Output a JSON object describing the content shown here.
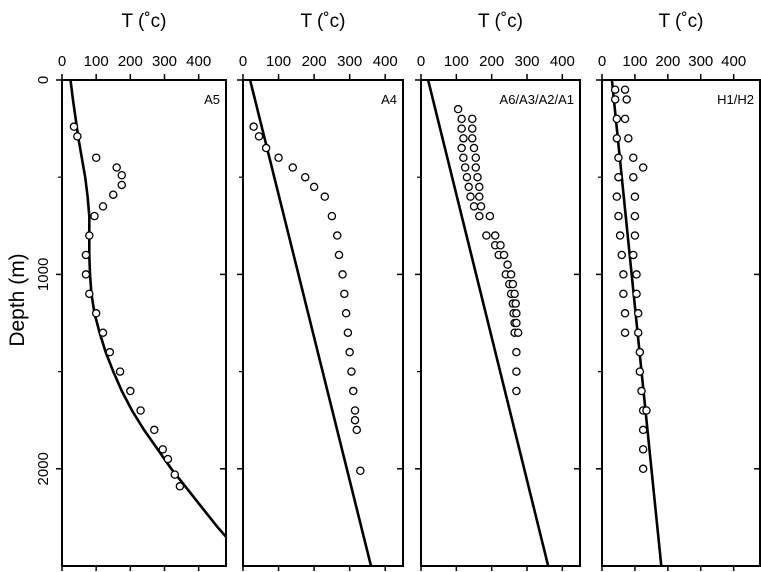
{
  "chart_data": {
    "type": "scatter",
    "shared_ylabel": "Depth (m)",
    "ylim": [
      0,
      2500
    ],
    "y_tick_labels": [
      {
        "v": 0,
        "t": "0"
      },
      {
        "v": 1000,
        "t": "1000"
      },
      {
        "v": 2000,
        "t": "2000"
      }
    ],
    "y_reversed": true,
    "panels": [
      {
        "title": "T (˚c)",
        "label": "A5",
        "xlim": [
          0,
          480
        ],
        "x_ticks": [
          0,
          100,
          200,
          300,
          400
        ],
        "x_tick_labels": [
          "0",
          "100",
          "200",
          "300",
          "400"
        ],
        "curve": [
          [
            25,
            0
          ],
          [
            32,
            100
          ],
          [
            40,
            200
          ],
          [
            48,
            300
          ],
          [
            58,
            400
          ],
          [
            68,
            500
          ],
          [
            75,
            600
          ],
          [
            80,
            700
          ],
          [
            80,
            800
          ],
          [
            80,
            900
          ],
          [
            82,
            1000
          ],
          [
            86,
            1100
          ],
          [
            95,
            1200
          ],
          [
            110,
            1300
          ],
          [
            128,
            1400
          ],
          [
            150,
            1500
          ],
          [
            175,
            1600
          ],
          [
            205,
            1700
          ],
          [
            240,
            1800
          ],
          [
            280,
            1900
          ],
          [
            320,
            2000
          ],
          [
            365,
            2100
          ],
          [
            410,
            2200
          ],
          [
            455,
            2300
          ],
          [
            480,
            2350
          ]
        ],
        "points": [
          [
            35,
            240
          ],
          [
            45,
            290
          ],
          [
            100,
            400
          ],
          [
            160,
            450
          ],
          [
            175,
            490
          ],
          [
            175,
            540
          ],
          [
            150,
            590
          ],
          [
            120,
            650
          ],
          [
            95,
            700
          ],
          [
            80,
            800
          ],
          [
            70,
            900
          ],
          [
            70,
            1000
          ],
          [
            80,
            1100
          ],
          [
            100,
            1200
          ],
          [
            120,
            1300
          ],
          [
            140,
            1400
          ],
          [
            170,
            1500
          ],
          [
            200,
            1600
          ],
          [
            230,
            1700
          ],
          [
            270,
            1800
          ],
          [
            295,
            1900
          ],
          [
            310,
            1950
          ],
          [
            330,
            2030
          ],
          [
            345,
            2090
          ]
        ]
      },
      {
        "title": "T (˚c)",
        "label": "A4",
        "xlim": [
          0,
          450
        ],
        "x_ticks": [
          0,
          100,
          200,
          300,
          400
        ],
        "x_tick_labels": [
          "0",
          "100",
          "200",
          "300",
          "400"
        ],
        "curve": [
          [
            20,
            0
          ],
          [
            360,
            2500
          ]
        ],
        "points": [
          [
            30,
            240
          ],
          [
            45,
            290
          ],
          [
            65,
            350
          ],
          [
            100,
            400
          ],
          [
            140,
            450
          ],
          [
            175,
            500
          ],
          [
            200,
            550
          ],
          [
            230,
            600
          ],
          [
            250,
            700
          ],
          [
            265,
            800
          ],
          [
            270,
            900
          ],
          [
            280,
            1000
          ],
          [
            285,
            1100
          ],
          [
            290,
            1200
          ],
          [
            295,
            1300
          ],
          [
            300,
            1400
          ],
          [
            305,
            1500
          ],
          [
            310,
            1600
          ],
          [
            315,
            1700
          ],
          [
            315,
            1750
          ],
          [
            320,
            1800
          ],
          [
            330,
            2010
          ]
        ]
      },
      {
        "title": "T (˚c)",
        "label": "A6/A3/A2/A1",
        "xlim": [
          0,
          450
        ],
        "x_ticks": [
          0,
          100,
          200,
          300,
          400
        ],
        "x_tick_labels": [
          "0",
          "100",
          "200",
          "300",
          "400"
        ],
        "curve": [
          [
            20,
            0
          ],
          [
            360,
            2500
          ]
        ],
        "points": [
          [
            105,
            150
          ],
          [
            115,
            200
          ],
          [
            145,
            200
          ],
          [
            115,
            250
          ],
          [
            145,
            250
          ],
          [
            120,
            300
          ],
          [
            145,
            300
          ],
          [
            115,
            350
          ],
          [
            150,
            350
          ],
          [
            120,
            400
          ],
          [
            155,
            400
          ],
          [
            125,
            450
          ],
          [
            155,
            450
          ],
          [
            130,
            500
          ],
          [
            160,
            500
          ],
          [
            135,
            550
          ],
          [
            165,
            550
          ],
          [
            140,
            600
          ],
          [
            165,
            600
          ],
          [
            150,
            650
          ],
          [
            170,
            650
          ],
          [
            165,
            700
          ],
          [
            195,
            700
          ],
          [
            185,
            800
          ],
          [
            210,
            800
          ],
          [
            210,
            850
          ],
          [
            225,
            850
          ],
          [
            220,
            900
          ],
          [
            235,
            900
          ],
          [
            245,
            950
          ],
          [
            240,
            1000
          ],
          [
            255,
            1000
          ],
          [
            250,
            1050
          ],
          [
            260,
            1050
          ],
          [
            255,
            1100
          ],
          [
            265,
            1100
          ],
          [
            260,
            1150
          ],
          [
            268,
            1150
          ],
          [
            262,
            1200
          ],
          [
            270,
            1200
          ],
          [
            265,
            1250
          ],
          [
            270,
            1250
          ],
          [
            265,
            1300
          ],
          [
            275,
            1300
          ],
          [
            270,
            1400
          ],
          [
            270,
            1500
          ],
          [
            270,
            1600
          ]
        ]
      },
      {
        "title": "T (˚c)",
        "label": "H1/H2",
        "xlim": [
          0,
          480
        ],
        "x_ticks": [
          0,
          100,
          200,
          300,
          400
        ],
        "x_tick_labels": [
          "0",
          "100",
          "200",
          "300",
          "400"
        ],
        "curve": [
          [
            30,
            0
          ],
          [
            180,
            2500
          ]
        ],
        "points": [
          [
            40,
            50
          ],
          [
            70,
            50
          ],
          [
            40,
            100
          ],
          [
            75,
            100
          ],
          [
            45,
            200
          ],
          [
            70,
            200
          ],
          [
            45,
            300
          ],
          [
            80,
            300
          ],
          [
            50,
            400
          ],
          [
            95,
            400
          ],
          [
            125,
            450
          ],
          [
            50,
            500
          ],
          [
            95,
            500
          ],
          [
            45,
            600
          ],
          [
            100,
            600
          ],
          [
            50,
            700
          ],
          [
            100,
            700
          ],
          [
            55,
            800
          ],
          [
            100,
            800
          ],
          [
            60,
            900
          ],
          [
            95,
            900
          ],
          [
            65,
            1000
          ],
          [
            105,
            1000
          ],
          [
            65,
            1100
          ],
          [
            105,
            1100
          ],
          [
            70,
            1200
          ],
          [
            110,
            1200
          ],
          [
            70,
            1300
          ],
          [
            110,
            1300
          ],
          [
            115,
            1400
          ],
          [
            115,
            1500
          ],
          [
            120,
            1600
          ],
          [
            125,
            1700
          ],
          [
            135,
            1700
          ],
          [
            125,
            1800
          ],
          [
            125,
            1900
          ],
          [
            125,
            2000
          ]
        ]
      }
    ]
  }
}
